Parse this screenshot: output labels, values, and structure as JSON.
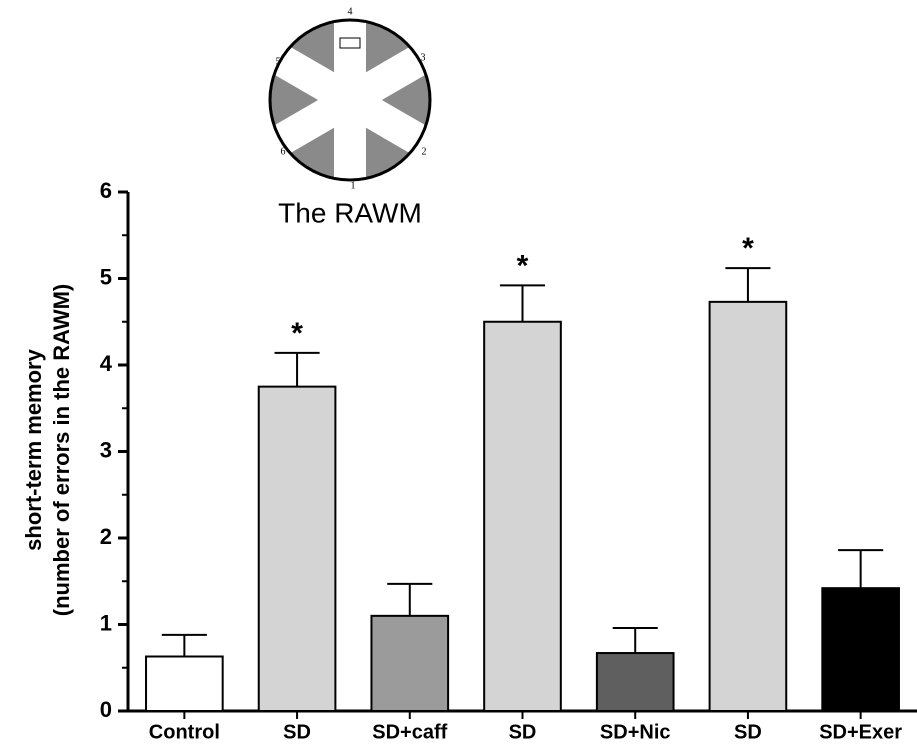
{
  "chart_data": {
    "type": "bar",
    "y_label": [
      "short-term memory",
      "(number of errors in the RAWM)"
    ],
    "categories": [
      "Control",
      "SD",
      "SD+caff",
      "SD",
      "SD+Nic",
      "SD",
      "SD+Exer"
    ],
    "values": [
      0.63,
      3.75,
      1.1,
      4.5,
      0.67,
      4.73,
      1.42
    ],
    "errors": [
      0.25,
      0.39,
      0.37,
      0.42,
      0.29,
      0.39,
      0.44
    ],
    "colors": [
      "#ffffff",
      "#d4d4d4",
      "#9b9b9b",
      "#d4d4d4",
      "#5f5f5f",
      "#d4d4d4",
      "#000000"
    ],
    "markers": [
      null,
      "*",
      null,
      "*",
      null,
      "*",
      null
    ],
    "ylim": [
      0,
      6
    ],
    "yticks": [
      0,
      1,
      2,
      3,
      4,
      5,
      6
    ],
    "yminorticks": [
      0.5,
      1.5,
      2.5,
      3.5,
      4.5,
      5.5
    ],
    "inset": {
      "title": "The RAWM",
      "arm_labels": [
        "1",
        "2",
        "3",
        "4",
        "5",
        "6"
      ]
    }
  }
}
